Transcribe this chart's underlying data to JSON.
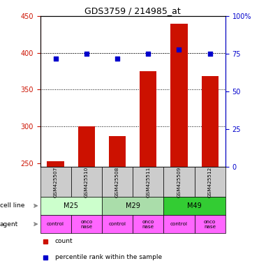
{
  "title": "GDS3759 / 214985_at",
  "samples": [
    "GSM425507",
    "GSM425510",
    "GSM425508",
    "GSM425511",
    "GSM425509",
    "GSM425512"
  ],
  "counts": [
    253,
    300,
    287,
    375,
    440,
    368
  ],
  "percentile_ranks": [
    72,
    75,
    72,
    75,
    78,
    75
  ],
  "bar_color": "#cc1100",
  "dot_color": "#0000cc",
  "ylim_left": [
    245,
    450
  ],
  "ylim_right": [
    0,
    100
  ],
  "yticks_left": [
    250,
    300,
    350,
    400,
    450
  ],
  "yticks_right": [
    0,
    25,
    50,
    75,
    100
  ],
  "ytick_labels_left": [
    "250",
    "300",
    "350",
    "400",
    "450"
  ],
  "ytick_labels_right": [
    "0",
    "25",
    "50",
    "75",
    "100%"
  ],
  "grid_vals": [
    300,
    350,
    400
  ],
  "cell_lines": [
    [
      "M25",
      0,
      2
    ],
    [
      "M29",
      2,
      4
    ],
    [
      "M49",
      4,
      6
    ]
  ],
  "cell_line_colors": {
    "M25": "#ccffcc",
    "M29": "#aaddaa",
    "M49": "#33cc33"
  },
  "sample_bg_color": "#cccccc",
  "left_axis_color": "#cc1100",
  "right_axis_color": "#0000cc",
  "legend_count_color": "#cc1100",
  "legend_pct_color": "#0000cc",
  "bar_width": 0.55,
  "agent_labels": [
    "control",
    "onco\nnase",
    "control",
    "onco\nnase",
    "control",
    "onco\nnase"
  ],
  "agent_color": "#ff66ff"
}
